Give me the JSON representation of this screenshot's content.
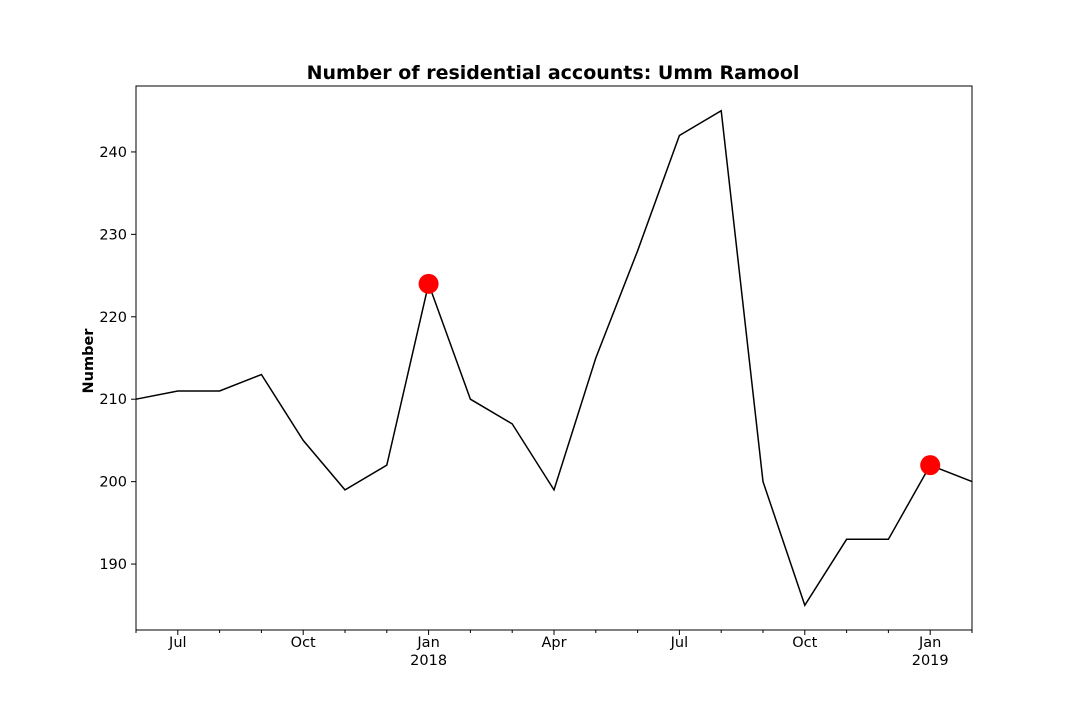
{
  "chart_data": {
    "type": "line",
    "title": "Number of residential accounts: Umm Ramool",
    "xlabel": "",
    "ylabel": "Number",
    "x": [
      "2017-06",
      "2017-07",
      "2017-08",
      "2017-09",
      "2017-10",
      "2017-11",
      "2017-12",
      "2018-01",
      "2018-02",
      "2018-03",
      "2018-04",
      "2018-05",
      "2018-06",
      "2018-07",
      "2018-08",
      "2018-09",
      "2018-10",
      "2018-11",
      "2018-12",
      "2019-01",
      "2019-02"
    ],
    "series": [
      {
        "values": [
          210,
          211,
          211,
          213,
          205,
          199,
          202,
          224,
          210,
          207,
          199,
          215,
          228,
          242,
          245,
          200,
          185,
          193,
          193,
          202,
          200
        ],
        "color": "#000000"
      }
    ],
    "highlights": [
      {
        "x": "2018-01",
        "y": 224,
        "color": "#ff0000"
      },
      {
        "x": "2019-01",
        "y": 202,
        "color": "#ff0000"
      }
    ],
    "xlim": [
      "2017-06",
      "2019-02"
    ],
    "ylim": [
      182,
      248
    ],
    "yticks": [
      190,
      200,
      210,
      220,
      230,
      240
    ],
    "xticks": [
      {
        "x": "2017-07",
        "label": "Jul",
        "year": ""
      },
      {
        "x": "2017-10",
        "label": "Oct",
        "year": ""
      },
      {
        "x": "2018-01",
        "label": "Jan",
        "year": "2018"
      },
      {
        "x": "2018-04",
        "label": "Apr",
        "year": ""
      },
      {
        "x": "2018-07",
        "label": "Jul",
        "year": ""
      },
      {
        "x": "2018-10",
        "label": "Oct",
        "year": ""
      },
      {
        "x": "2019-01",
        "label": "Jan",
        "year": "2019"
      }
    ],
    "minor_xticks": [
      "2017-06",
      "2017-08",
      "2017-09",
      "2017-11",
      "2017-12",
      "2018-02",
      "2018-03",
      "2018-05",
      "2018-06",
      "2018-08",
      "2018-09",
      "2018-11",
      "2018-12",
      "2019-02"
    ],
    "grid": false,
    "legend": "none"
  }
}
